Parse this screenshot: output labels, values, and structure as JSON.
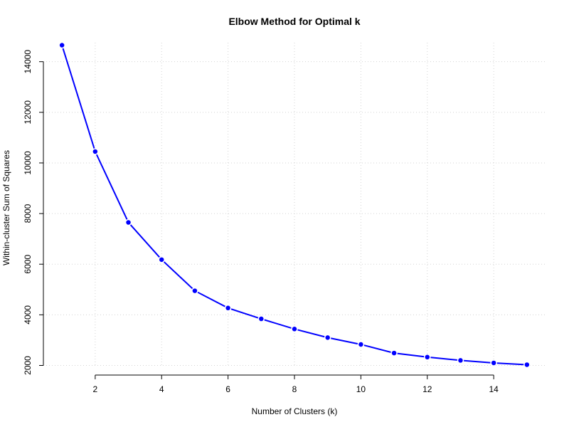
{
  "chart_data": {
    "type": "line",
    "title": "Elbow Method for Optimal k",
    "xlabel": "Number of Clusters (k)",
    "ylabel": "Within-cluster Sum of Squares",
    "x": [
      1,
      2,
      3,
      4,
      5,
      6,
      7,
      8,
      9,
      10,
      11,
      12,
      13,
      14,
      15
    ],
    "series": [
      {
        "values": [
          14650,
          10450,
          7650,
          6180,
          4950,
          4270,
          3840,
          3440,
          3100,
          2830,
          2490,
          2330,
          2200,
          2100,
          2030
        ]
      }
    ],
    "xlim": [
      0.44,
      15.56
    ],
    "ylim": [
      1930,
      14750
    ],
    "x_ticks": [
      2,
      4,
      6,
      8,
      10,
      12,
      14
    ],
    "x_tick_labels": [
      "2",
      "4",
      "6",
      "8",
      "10",
      "12",
      "14"
    ],
    "y_ticks": [
      2000,
      4000,
      6000,
      8000,
      10000,
      12000,
      14000
    ],
    "y_tick_labels": [
      "2000",
      "4000",
      "6000",
      "8000",
      "10000",
      "12000",
      "14000"
    ],
    "grid": true,
    "line_color": "#0000ff",
    "marker_color": "#0000ff"
  }
}
